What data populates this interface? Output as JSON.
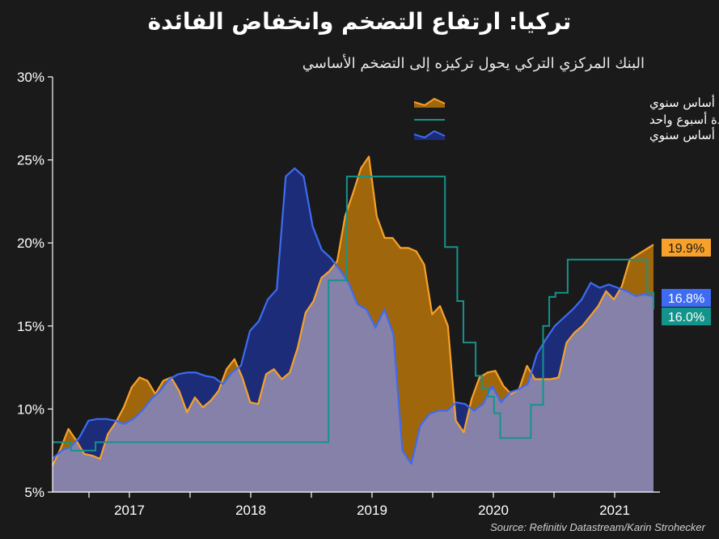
{
  "title": "تركيا: ارتفاع التضخم وانخفاض الفائدة",
  "subtitle": "البنك المركزي التركي يحول تركيزه إلى التضخم الأساسي",
  "source": "Source: Refinitiv Datastream/Karin Strohecker",
  "chart_data": {
    "type": "line",
    "x_start": "2016-05",
    "x_end": "2021-05",
    "x_tick_labels": [
      "2017",
      "2018",
      "2019",
      "2020",
      "2021"
    ],
    "y_tick_labels": [
      "5%",
      "10%",
      "15%",
      "20%",
      "25%",
      "30%"
    ],
    "ylim": [
      5,
      30
    ],
    "grid": false,
    "legend_position": "top-right",
    "series": [
      {
        "name": "مؤشر أسعار المستهلك على أساس سنوي",
        "color": "#f7a12a",
        "end_label": "19.9%",
        "values": [
          6.6,
          7.6,
          8.8,
          8.1,
          7.3,
          7.2,
          7.0,
          8.5,
          9.2,
          10.1,
          11.3,
          11.9,
          11.7,
          10.9,
          11.7,
          11.9,
          11.1,
          9.8,
          10.7,
          10.1,
          10.5,
          11.1,
          12.4,
          13.0,
          11.9,
          10.4,
          10.3,
          12.1,
          12.4,
          11.8,
          12.2,
          13.7,
          15.8,
          16.5,
          17.9,
          18.3,
          18.9,
          21.6,
          23.0,
          24.5,
          25.2,
          21.6,
          20.3,
          20.3,
          19.7,
          19.7,
          19.5,
          18.7,
          15.7,
          16.2,
          15.0,
          9.3,
          8.6,
          10.6,
          11.9,
          12.2,
          12.3,
          11.4,
          10.9,
          11.2,
          12.6,
          11.8,
          11.8,
          11.8,
          11.9,
          14.0,
          14.6,
          15.0,
          15.6,
          16.2,
          17.1,
          16.6,
          17.4,
          19.0,
          19.3,
          19.6,
          19.9
        ]
      },
      {
        "name": "سعر إعادة الإقراض لمدة أسبوع واحد",
        "color": "#14938a",
        "end_label": "16.0%",
        "values": [
          8.0,
          8.0,
          8.0,
          7.5,
          7.5,
          7.5,
          7.5,
          8.0,
          8.0,
          8.0,
          8.0,
          8.0,
          8.0,
          8.0,
          8.0,
          8.0,
          8.0,
          8.0,
          8.0,
          8.0,
          8.0,
          8.0,
          8.0,
          8.0,
          8.0,
          8.0,
          8.0,
          8.0,
          8.0,
          8.0,
          8.0,
          8.0,
          8.0,
          8.0,
          8.0,
          8.0,
          8.0,
          8.0,
          8.0,
          8.0,
          8.0,
          8.0,
          8.0,
          8.0,
          8.0,
          17.75,
          17.75,
          17.75,
          24.0,
          24.0,
          24.0,
          24.0,
          24.0,
          24.0,
          24.0,
          24.0,
          24.0,
          24.0,
          24.0,
          24.0,
          24.0,
          24.0,
          24.0,
          24.0,
          19.75,
          19.75,
          16.5,
          14.0,
          14.0,
          12.0,
          11.25,
          10.75,
          9.75,
          8.25,
          8.25,
          8.25,
          8.25,
          8.25,
          10.25,
          10.25,
          15.0,
          16.75,
          17.0,
          17.0,
          19.0,
          19.0,
          19.0,
          19.0,
          19.0,
          19.0,
          19.0,
          19.0,
          19.0,
          19.0,
          19.0,
          19.0,
          19.0,
          17.0,
          16.0
        ]
      },
      {
        "name": "التضخم الأساسي على أساس سنوي",
        "color": "#3d6cf2",
        "end_label": "16.8%",
        "values": [
          7.0,
          7.5,
          7.7,
          8.3,
          9.3,
          9.4,
          9.4,
          9.3,
          9.1,
          9.4,
          9.9,
          10.6,
          11.1,
          11.8,
          12.1,
          12.2,
          12.2,
          12.0,
          11.9,
          11.5,
          12.2,
          12.6,
          14.7,
          15.3,
          16.6,
          17.2,
          24.0,
          24.5,
          24.0,
          21.0,
          19.6,
          19.1,
          18.4,
          17.6,
          16.3,
          16.0,
          14.9,
          16.0,
          14.5,
          7.5,
          6.7,
          9.0,
          9.7,
          9.9,
          9.9,
          10.4,
          10.3,
          9.9,
          10.3,
          11.4,
          10.4,
          11.0,
          11.2,
          11.5,
          13.3,
          14.2,
          15.0,
          15.5,
          16.0,
          16.6,
          17.6,
          17.3,
          17.5,
          17.3,
          17.1,
          16.8,
          16.9,
          16.8
        ]
      }
    ]
  }
}
